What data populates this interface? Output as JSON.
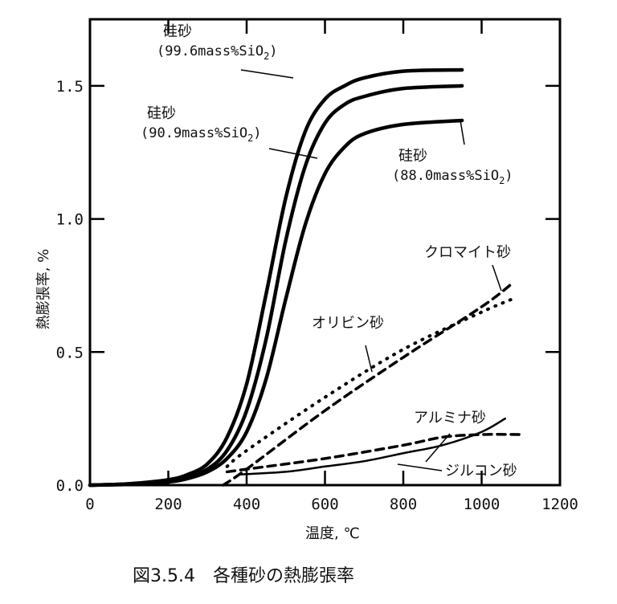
{
  "chart_data": {
    "type": "line",
    "title": "図3.5.4　各種砂の熱膨張率",
    "xlabel": "温度, ℃",
    "ylabel": "熱膨張率, %",
    "xlim": [
      0,
      1200
    ],
    "ylim": [
      0,
      1.75
    ],
    "xticks": [
      "0",
      "200",
      "400",
      "600",
      "800",
      "1000",
      "1200"
    ],
    "xtick_values": [
      0,
      200,
      400,
      600,
      800,
      1000,
      1200
    ],
    "yticks": [
      "0.0",
      "0.5",
      "1.0",
      "1.5"
    ],
    "ytick_values": [
      0,
      0.5,
      1.0,
      1.5
    ],
    "grid": false,
    "series": [
      {
        "name": "硅砂 (99.6mass%SiO2)",
        "label1": "硅砂",
        "label2": "(99.6mass%SiO",
        "sub": "2",
        "label3": ")",
        "style": "solid-thick",
        "x": [
          0,
          100,
          200,
          250,
          300,
          350,
          400,
          450,
          500,
          550,
          600,
          650,
          700,
          800,
          950
        ],
        "y": [
          0,
          0.005,
          0.02,
          0.04,
          0.08,
          0.18,
          0.38,
          0.72,
          1.08,
          1.33,
          1.45,
          1.5,
          1.53,
          1.555,
          1.56
        ]
      },
      {
        "name": "硅砂 (90.9mass%SiO2)",
        "label1": "硅砂",
        "label2": "(90.9mass%SiO",
        "sub": "2",
        "label3": ")",
        "style": "solid-thick",
        "x": [
          0,
          100,
          200,
          250,
          300,
          350,
          400,
          450,
          500,
          550,
          600,
          650,
          700,
          800,
          950
        ],
        "y": [
          0,
          0.004,
          0.015,
          0.03,
          0.06,
          0.13,
          0.28,
          0.55,
          0.92,
          1.2,
          1.36,
          1.43,
          1.46,
          1.49,
          1.5
        ]
      },
      {
        "name": "硅砂 (88.0mass%SiO2)",
        "label1": "硅砂",
        "label2": "(88.0mass%SiO",
        "sub": "2",
        "label3": ")",
        "style": "solid-thick",
        "x": [
          0,
          100,
          200,
          250,
          300,
          350,
          400,
          450,
          500,
          550,
          600,
          650,
          700,
          800,
          950
        ],
        "y": [
          0,
          0.003,
          0.012,
          0.025,
          0.05,
          0.1,
          0.2,
          0.4,
          0.7,
          0.98,
          1.17,
          1.27,
          1.32,
          1.355,
          1.37
        ]
      },
      {
        "name": "クロマイト砂",
        "label1": "クロマイト砂",
        "style": "dashed",
        "x": [
          340,
          400,
          600,
          800,
          1000,
          1080
        ],
        "y": [
          0.0,
          0.06,
          0.28,
          0.48,
          0.67,
          0.76
        ]
      },
      {
        "name": "オリビン砂",
        "label1": "オリビン砂",
        "style": "dotted",
        "x": [
          350,
          400,
          600,
          800,
          1000,
          1080
        ],
        "y": [
          0.07,
          0.13,
          0.33,
          0.51,
          0.65,
          0.7
        ]
      },
      {
        "name": "アルミナ砂",
        "label1": "アルミナ砂",
        "style": "dashed",
        "x": [
          350,
          400,
          600,
          800,
          900,
          1000,
          1100
        ],
        "y": [
          0.05,
          0.06,
          0.1,
          0.15,
          0.18,
          0.19,
          0.19
        ]
      },
      {
        "name": "ジルコン砂",
        "label1": "ジルコン砂",
        "style": "solid-thin",
        "x": [
          380,
          500,
          600,
          700,
          800,
          900,
          1000,
          1060
        ],
        "y": [
          0.04,
          0.05,
          0.07,
          0.09,
          0.12,
          0.15,
          0.2,
          0.25
        ]
      }
    ]
  }
}
